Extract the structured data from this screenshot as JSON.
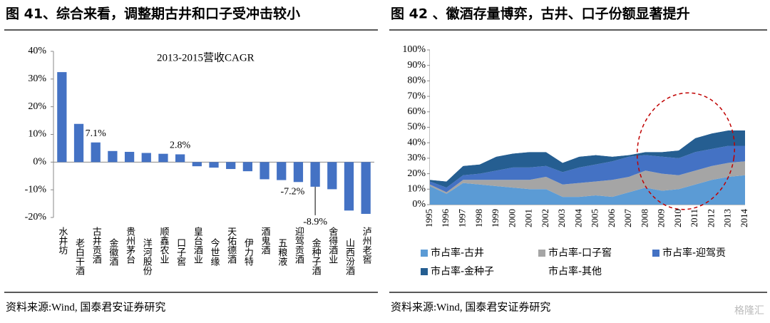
{
  "chart_data": [
    {
      "type": "bar",
      "figure_title": "图 41、综合来看，调整期古井和口子受冲击较小",
      "title": "2013-2015营收CAGR",
      "source": "资料来源:Wind, 国泰君安证券研究",
      "categories": [
        "水井坊",
        "老白干酒",
        "古井贡酒",
        "金徽酒",
        "贵州茅台",
        "洋河股份",
        "顺鑫农业",
        "口子窖",
        "皇台酒业",
        "今世缘",
        "天佑德酒",
        "伊力特",
        "酒鬼酒",
        "五粮液",
        "迎驾贡酒",
        "金种子酒",
        "舍得酒业",
        "山西汾酒",
        "泸州老窖"
      ],
      "values": [
        32.5,
        13.8,
        7.1,
        4.0,
        3.7,
        3.3,
        3.0,
        2.8,
        -1.5,
        -2.0,
        -2.5,
        -3.3,
        -6.2,
        -6.5,
        -7.2,
        -8.9,
        -9.8,
        -17.5,
        -18.7
      ],
      "value_labels": [
        null,
        null,
        "7.1%",
        null,
        null,
        null,
        null,
        "2.8%",
        null,
        null,
        null,
        null,
        null,
        null,
        "-7.2%",
        "-8.9%",
        null,
        null,
        null
      ],
      "color": "#4472c4",
      "ylim": [
        -20,
        40
      ],
      "yticks": [
        {
          "value": -20,
          "label": "-20%"
        },
        {
          "value": -10,
          "label": "-10%"
        },
        {
          "value": 0,
          "label": "0%"
        },
        {
          "value": 10,
          "label": "10%"
        },
        {
          "value": 20,
          "label": "20%"
        },
        {
          "value": 30,
          "label": "30%"
        },
        {
          "value": 40,
          "label": "40%"
        }
      ],
      "grid": false
    },
    {
      "type": "stacked_area",
      "figure_title": "图 42 、徽酒存量博弈，古井、口子份额显著提升",
      "source": "资料来源:Wind, 国泰君安证券研究",
      "watermark": "格隆汇",
      "categories": [
        "1995",
        "1996",
        "1997",
        "1998",
        "1999",
        "2000",
        "2001",
        "2002",
        "2003",
        "2004",
        "2005",
        "2006",
        "2007",
        "2008",
        "2009",
        "2010",
        "2011",
        "2012",
        "2013",
        "2014"
      ],
      "series": [
        {
          "name": "市占率-古井",
          "color": "#5b9bd5",
          "values": [
            12,
            7,
            14,
            13,
            12,
            11,
            10,
            10,
            5,
            5,
            6,
            5,
            8,
            11,
            9,
            10,
            13,
            16,
            18,
            19
          ]
        },
        {
          "name": "市占率-口子窖",
          "color": "#a5a5a5",
          "values": [
            1,
            1,
            2,
            3,
            4,
            5,
            6,
            8,
            8,
            9,
            9,
            11,
            10,
            11,
            11,
            9,
            9,
            9,
            9,
            9
          ]
        },
        {
          "name": "市占率-迎驾贡",
          "color": "#4472c4",
          "values": [
            2,
            3,
            3,
            4,
            6,
            8,
            8,
            7,
            8,
            10,
            11,
            12,
            13,
            10,
            11,
            11,
            12,
            11,
            11,
            10
          ]
        },
        {
          "name": "市占率-金种子",
          "color": "#255e91",
          "values": [
            1,
            4,
            6,
            6,
            9,
            9,
            10,
            9,
            6,
            7,
            6,
            3,
            1,
            2,
            3,
            5,
            9,
            10,
            10,
            10
          ]
        },
        {
          "name": "市占率-其他",
          "color": "#ffffff",
          "values": [
            84,
            85,
            75,
            74,
            69,
            67,
            66,
            66,
            73,
            69,
            68,
            69,
            68,
            66,
            66,
            65,
            57,
            54,
            52,
            52
          ]
        }
      ],
      "ylim": [
        0,
        100
      ],
      "yticks": [
        {
          "value": 0,
          "label": "0%"
        },
        {
          "value": 10,
          "label": "10%"
        },
        {
          "value": 20,
          "label": "20%"
        },
        {
          "value": 30,
          "label": "30%"
        },
        {
          "value": 40,
          "label": "40%"
        },
        {
          "value": 50,
          "label": "50%"
        },
        {
          "value": 60,
          "label": "60%"
        },
        {
          "value": 70,
          "label": "70%"
        },
        {
          "value": 80,
          "label": "80%"
        },
        {
          "value": 90,
          "label": "90%"
        },
        {
          "value": 100,
          "label": "100%"
        }
      ],
      "grid": false
    }
  ]
}
